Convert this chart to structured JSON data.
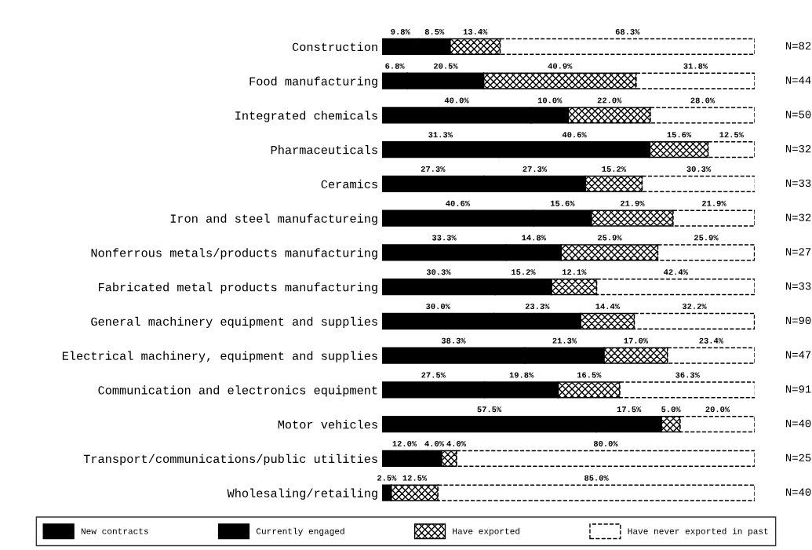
{
  "chart_data": {
    "type": "bar",
    "orientation": "horizontal",
    "stacked": true,
    "legend": "bottom",
    "tick_labels": "y",
    "grid": false,
    "xlim": [
      0,
      100
    ],
    "categories": [
      "Construction",
      "Food manufacturing",
      "Integrated chemicals",
      "Pharmaceuticals",
      "Ceramics",
      "Iron and steel manufactureing",
      "Nonferrous metals/products manufacturing",
      "Fabricated metal products manufacturing",
      "General machinery equipment and supplies",
      "Electrical machinery, equipment and supplies",
      "Communication and electronics equipment",
      "Motor vehicles",
      "Transport/communications/public utilities",
      "Wholesaling/retailing"
    ],
    "series": [
      {
        "name": "New contracts",
        "color": "#000000",
        "values": [
          9.8,
          6.8,
          40.0,
          31.3,
          27.3,
          40.6,
          33.3,
          30.3,
          30.0,
          38.3,
          27.5,
          57.5,
          12.0,
          2.5
        ],
        "value_labels": [
          "9.8%",
          "6.8%",
          "40.0%",
          "31.3%",
          "27.3%",
          "40.6%",
          "33.3%",
          "30.3%",
          "30.0%",
          "38.3%",
          "27.5%",
          "57.5%",
          "12.0%",
          "2.5%"
        ]
      },
      {
        "name": "Currently engaged",
        "color": "#000000",
        "values": [
          8.5,
          20.5,
          10.0,
          40.6,
          27.3,
          15.6,
          14.8,
          15.2,
          23.3,
          21.3,
          19.8,
          17.5,
          4.0,
          null
        ],
        "value_labels": [
          "8.5%",
          "20.5%",
          "10.0%",
          "40.6%",
          "27.3%",
          "15.6%",
          "14.8%",
          "15.2%",
          "23.3%",
          "21.3%",
          "19.8%",
          "17.5%",
          "4.0%",
          null
        ]
      },
      {
        "name": "Have exported",
        "color": "#000000",
        "values": [
          13.4,
          40.9,
          22.0,
          15.6,
          15.2,
          21.9,
          25.9,
          12.1,
          14.4,
          17.0,
          16.5,
          5.0,
          4.0,
          12.5
        ],
        "value_labels": [
          "13.4%",
          "40.9%",
          "22.0%",
          "15.6%",
          "15.2%",
          "21.9%",
          "25.9%",
          "12.1%",
          "14.4%",
          "17.0%",
          "16.5%",
          "5.0%",
          "4.0%",
          "12.5%"
        ]
      },
      {
        "name": "Have never exported in past",
        "color": "#ffffff",
        "values": [
          68.3,
          31.8,
          28.0,
          12.5,
          30.3,
          21.9,
          25.9,
          42.4,
          32.2,
          23.4,
          36.3,
          20.0,
          80.0,
          85.0
        ],
        "value_labels": [
          "68.3%",
          "31.8%",
          "28.0%",
          "12.5%",
          "30.3%",
          "21.9%",
          "25.9%",
          "42.4%",
          "32.2%",
          "23.4%",
          "36.3%",
          "20.0%",
          "80.0%",
          "85.0%"
        ]
      }
    ],
    "annotations": [
      "N=82",
      "N=44",
      "N=50",
      "N=32",
      "N=33",
      "N=32",
      "N=27",
      "N=33",
      "N=90",
      "N=47",
      "N=91",
      "N=40",
      "N=25",
      "N=40"
    ]
  }
}
